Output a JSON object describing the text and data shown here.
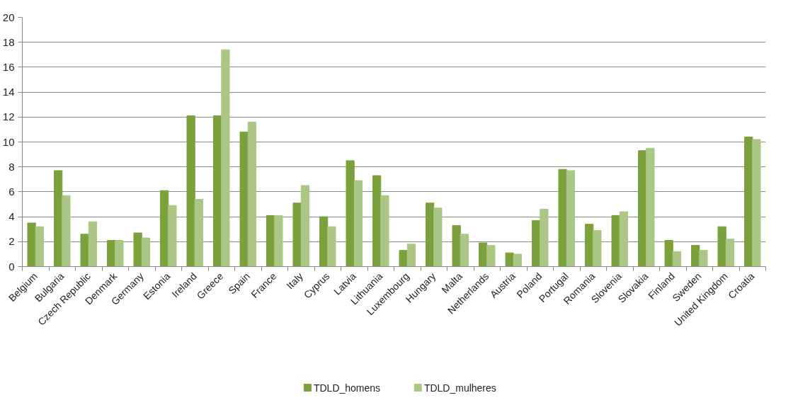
{
  "chart_data": {
    "type": "bar",
    "categories": [
      "Belgium",
      "Bulgaria",
      "Czech Republic",
      "Denmark",
      "Germany",
      "Estonia",
      "Ireland",
      "Greece",
      "Spain",
      "France",
      "Italy",
      "Cyprus",
      "Latvia",
      "Lithuania",
      "Luxembourg",
      "Hungary",
      "Malta",
      "Netherlands",
      "Austria",
      "Poland",
      "Portugal",
      "Romania",
      "Slovenia",
      "Slovakia",
      "Finland",
      "Sweden",
      "United Kingdom",
      "Croatia"
    ],
    "series": [
      {
        "name": "TDLD_homens",
        "color": "#7aa13c",
        "values": [
          3.5,
          7.7,
          2.6,
          2.1,
          2.7,
          6.1,
          12.1,
          12.1,
          10.8,
          4.1,
          5.1,
          4.0,
          8.5,
          7.3,
          1.3,
          5.1,
          3.3,
          1.9,
          1.1,
          3.7,
          7.8,
          3.4,
          4.1,
          9.3,
          2.1,
          1.7,
          3.2,
          10.4
        ]
      },
      {
        "name": "TDLD_mulheres",
        "color": "#abc785",
        "values": [
          3.2,
          5.7,
          3.6,
          2.1,
          2.3,
          4.9,
          5.4,
          17.4,
          11.6,
          4.1,
          6.5,
          3.2,
          6.9,
          5.7,
          1.8,
          4.7,
          2.6,
          1.7,
          1.0,
          4.6,
          7.7,
          2.9,
          4.4,
          9.5,
          1.2,
          1.3,
          2.2,
          10.2
        ]
      }
    ],
    "ylim": [
      0,
      20
    ],
    "yticks": [
      0,
      2,
      4,
      6,
      8,
      10,
      12,
      14,
      16,
      18,
      20
    ],
    "grid": "y",
    "legend": "bottom"
  }
}
